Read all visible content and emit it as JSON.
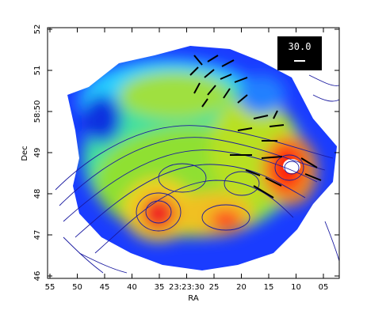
{
  "chart_data": {
    "type": "image",
    "xlabel": "RA",
    "ylabel": "Dec",
    "xticks": [
      "55",
      "50",
      "45",
      "40",
      "35",
      "23:23:30",
      "25",
      "20",
      "15",
      "10",
      "05"
    ],
    "yticks": [
      "52",
      "51",
      "58:50",
      "49",
      "48",
      "47",
      "46"
    ],
    "beam_label": "30.0"
  }
}
